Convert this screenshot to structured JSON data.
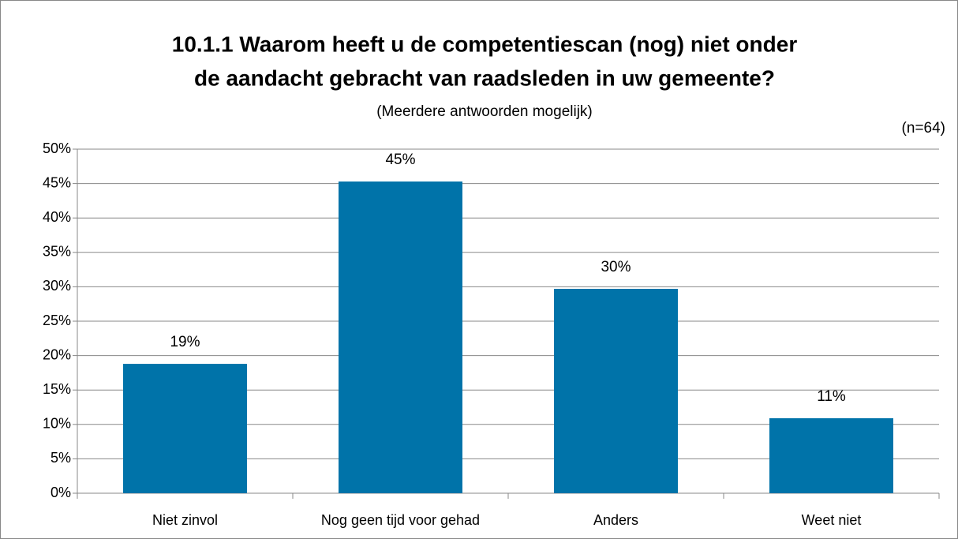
{
  "chart_data": {
    "type": "bar",
    "title": [
      "10.1.1 Waarom heeft u de competentiescan (nog) niet onder",
      "de aandacht gebracht van raadsleden in uw gemeente?"
    ],
    "subtitle": "(Meerdere antwoorden mogelijk)",
    "annotation": "(n=64)",
    "categories": [
      "Niet zinvol",
      "Nog geen tijd voor gehad",
      "Anders",
      "Weet niet"
    ],
    "values": [
      18.8,
      45.3,
      29.7,
      10.9
    ],
    "value_labels": [
      "19%",
      "45%",
      "30%",
      "11%"
    ],
    "color": "#0073a9",
    "ylim": [
      0,
      50
    ],
    "yticks": [
      {
        "value": 0,
        "label": "0%"
      },
      {
        "value": 5,
        "label": "5%"
      },
      {
        "value": 10,
        "label": "10%"
      },
      {
        "value": 15,
        "label": "15%"
      },
      {
        "value": 20,
        "label": "20%"
      },
      {
        "value": 25,
        "label": "25%"
      },
      {
        "value": 30,
        "label": "30%"
      },
      {
        "value": 35,
        "label": "35%"
      },
      {
        "value": 40,
        "label": "40%"
      },
      {
        "value": 45,
        "label": "45%"
      },
      {
        "value": 50,
        "label": "50%"
      }
    ],
    "grid": true
  }
}
